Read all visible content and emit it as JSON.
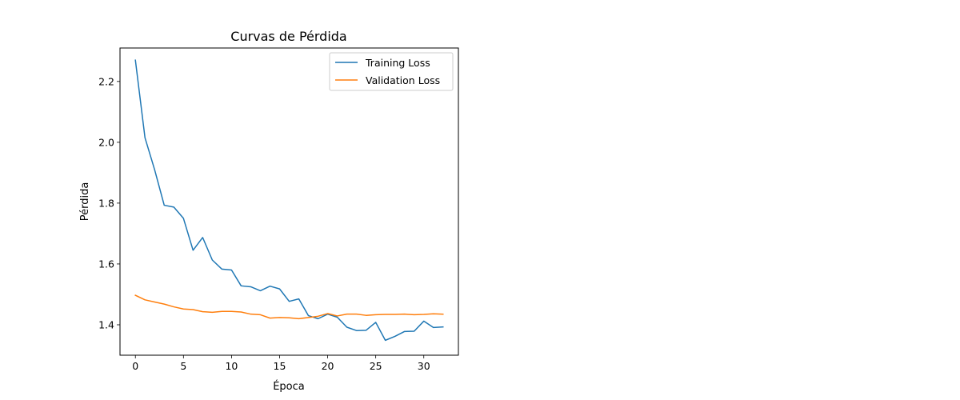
{
  "chart_data": {
    "type": "line",
    "title": "Curvas de Pérdida",
    "xlabel": "Época",
    "ylabel": "Pérdida",
    "xlim": [
      -1.6,
      33.6
    ],
    "ylim": [
      1.3,
      2.31
    ],
    "xticks": [
      0,
      5,
      10,
      15,
      20,
      25,
      30
    ],
    "yticks": [
      1.4,
      1.6,
      1.8,
      2.0,
      2.2
    ],
    "xtick_labels": [
      "0",
      "5",
      "10",
      "15",
      "20",
      "25",
      "30"
    ],
    "ytick_labels": [
      "1.4",
      "1.6",
      "1.8",
      "2.0",
      "2.2"
    ],
    "grid": false,
    "legend_position": "upper right",
    "x": [
      0,
      1,
      2,
      3,
      4,
      5,
      6,
      7,
      8,
      9,
      10,
      11,
      12,
      13,
      14,
      15,
      16,
      17,
      18,
      19,
      20,
      21,
      22,
      23,
      24,
      25,
      26,
      27,
      28,
      29,
      30,
      31,
      32
    ],
    "series": [
      {
        "name": "Training Loss",
        "color": "#1f77b4",
        "values": [
          2.27,
          2.015,
          1.91,
          1.793,
          1.787,
          1.75,
          1.645,
          1.687,
          1.613,
          1.583,
          1.58,
          1.528,
          1.525,
          1.512,
          1.527,
          1.518,
          1.477,
          1.485,
          1.43,
          1.42,
          1.435,
          1.425,
          1.392,
          1.381,
          1.382,
          1.408,
          1.349,
          1.362,
          1.378,
          1.379,
          1.412,
          1.391,
          1.393
        ]
      },
      {
        "name": "Validation Loss",
        "color": "#ff7f0e",
        "values": [
          1.497,
          1.482,
          1.475,
          1.468,
          1.459,
          1.452,
          1.45,
          1.443,
          1.441,
          1.444,
          1.444,
          1.442,
          1.435,
          1.433,
          1.422,
          1.424,
          1.423,
          1.42,
          1.424,
          1.428,
          1.437,
          1.429,
          1.435,
          1.435,
          1.431,
          1.433,
          1.434,
          1.434,
          1.435,
          1.433,
          1.434,
          1.436,
          1.435
        ]
      }
    ]
  }
}
